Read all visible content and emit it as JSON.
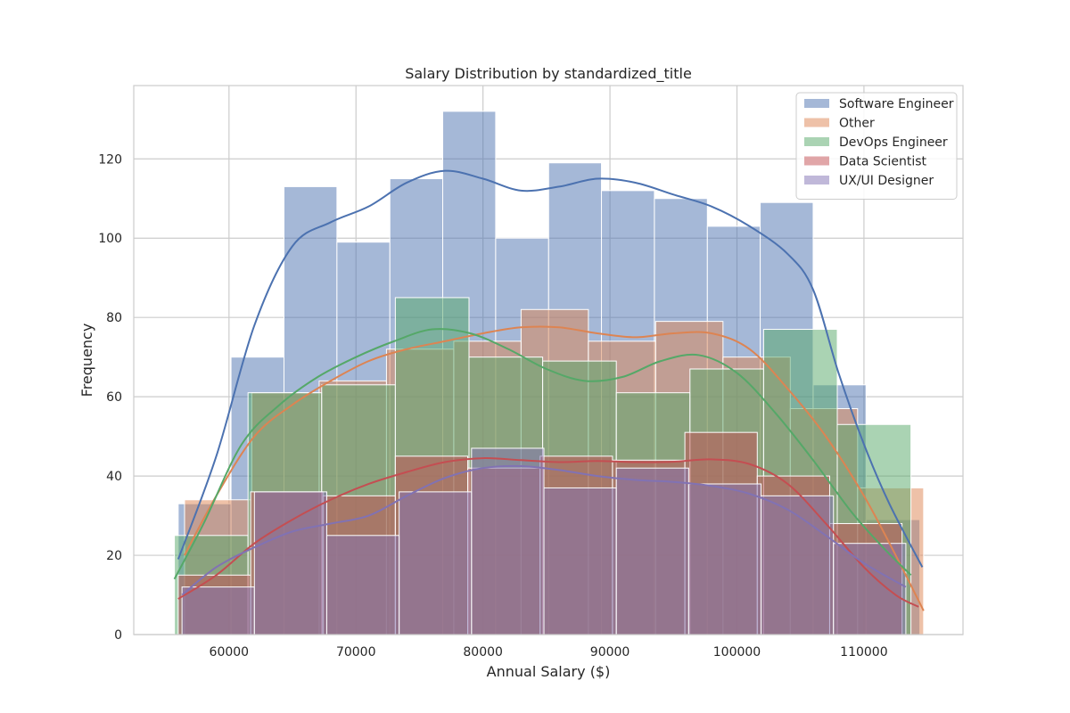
{
  "chart_data": {
    "type": "histogram",
    "title": "Salary Distribution by standardized_title",
    "xlabel": "Annual Salary ($)",
    "ylabel": "Frequency",
    "xlim": [
      52500,
      117800
    ],
    "ylim": [
      0,
      138.5
    ],
    "xticks": [
      60000,
      70000,
      80000,
      90000,
      100000,
      110000
    ],
    "yticks": [
      0,
      20,
      40,
      60,
      80,
      100,
      120
    ],
    "grid": true,
    "legend_position": "top-right",
    "kde": true,
    "series": [
      {
        "name": "Software Engineer",
        "color": "#4c72b0",
        "edges": [
          56000,
          60160,
          64330,
          68500,
          72670,
          76830,
          81000,
          85170,
          89330,
          93500,
          97670,
          101830,
          106000,
          110170,
          114400
        ],
        "counts": [
          33,
          70,
          113,
          99,
          115,
          132,
          100,
          119,
          112,
          110,
          103,
          109,
          63,
          29
        ],
        "kde_x": [
          56000,
          59000,
          62000,
          65000,
          68000,
          71000,
          74000,
          77000,
          80000,
          83000,
          86000,
          89000,
          92000,
          95000,
          98000,
          101000,
          104000,
          106000,
          108000,
          110000,
          112000,
          114600
        ],
        "kde_y": [
          19,
          45,
          78,
          98,
          104,
          108,
          114,
          117,
          115,
          112,
          113,
          115,
          114,
          111,
          108,
          103,
          96,
          87,
          66,
          48,
          33,
          17
        ]
      },
      {
        "name": "Other",
        "color": "#dd8452",
        "edges": [
          56500,
          61800,
          67100,
          72400,
          77700,
          83000,
          88300,
          93600,
          98900,
          104200,
          109500,
          114700
        ],
        "counts": [
          34,
          61,
          64,
          72,
          74,
          82,
          74,
          79,
          70,
          57,
          37
        ],
        "kde_x": [
          56500,
          59000,
          62000,
          65000,
          68000,
          71000,
          74000,
          77000,
          80000,
          83000,
          86000,
          89000,
          92000,
          95000,
          98000,
          101000,
          104000,
          107000,
          110000,
          112500,
          114700
        ],
        "kde_y": [
          20,
          35,
          50,
          58,
          64,
          69,
          72,
          74,
          76,
          77.5,
          77.5,
          76,
          75,
          76,
          76,
          72,
          62,
          50,
          35,
          20,
          6
        ]
      },
      {
        "name": "DevOps Engineer",
        "color": "#55a868",
        "edges": [
          55700,
          61500,
          67300,
          73100,
          78900,
          84700,
          90500,
          96300,
          102100,
          107900,
          113700
        ],
        "counts": [
          25,
          61,
          63,
          85,
          70,
          69,
          61,
          67,
          77,
          53
        ],
        "kde_x": [
          55700,
          58000,
          61000,
          64000,
          67000,
          70000,
          73000,
          76000,
          79000,
          82000,
          85000,
          88000,
          91000,
          94000,
          97000,
          100000,
          103000,
          106000,
          109000,
          111500,
          113700
        ],
        "kde_y": [
          14,
          28,
          48,
          58,
          65,
          70,
          74,
          77,
          76,
          72,
          67,
          64,
          65,
          69,
          70.5,
          66,
          56,
          44,
          31,
          22,
          15
        ]
      },
      {
        "name": "Data Scientist",
        "color": "#c44e52",
        "edges": [
          56000,
          61700,
          67400,
          73100,
          78800,
          84500,
          90200,
          95900,
          101600,
          107300,
          113000
        ],
        "counts": [
          15,
          36,
          35,
          45,
          42,
          45,
          44,
          51,
          40,
          28
        ],
        "kde_x": [
          56000,
          59000,
          62000,
          65000,
          68000,
          71000,
          74000,
          77000,
          80000,
          83000,
          86000,
          89000,
          92000,
          95000,
          98000,
          101000,
          104000,
          107000,
          110000,
          112500,
          114300
        ],
        "kde_y": [
          9,
          15,
          23,
          29,
          34,
          38,
          41,
          43.5,
          44.5,
          44,
          43.5,
          43.8,
          43.5,
          43.6,
          44.2,
          43,
          38,
          28,
          17,
          10,
          7
        ]
      },
      {
        "name": "UX/UI Designer",
        "color": "#8172b3",
        "edges": [
          56300,
          62000,
          67700,
          73400,
          79100,
          84800,
          90500,
          96200,
          101900,
          107600,
          113300
        ],
        "counts": [
          12,
          36,
          25,
          36,
          47,
          37,
          42,
          38,
          35,
          23
        ],
        "kde_x": [
          56300,
          59000,
          62000,
          65000,
          68000,
          71000,
          74000,
          77000,
          80000,
          83000,
          86000,
          89000,
          92000,
          95000,
          98000,
          101000,
          104000,
          107000,
          110000,
          113300
        ],
        "kde_y": [
          10,
          17,
          22,
          26,
          28,
          30,
          35,
          39.5,
          42,
          42.5,
          41.5,
          40,
          39,
          38.5,
          37.5,
          35.5,
          31.5,
          25,
          18,
          12
        ]
      }
    ]
  }
}
